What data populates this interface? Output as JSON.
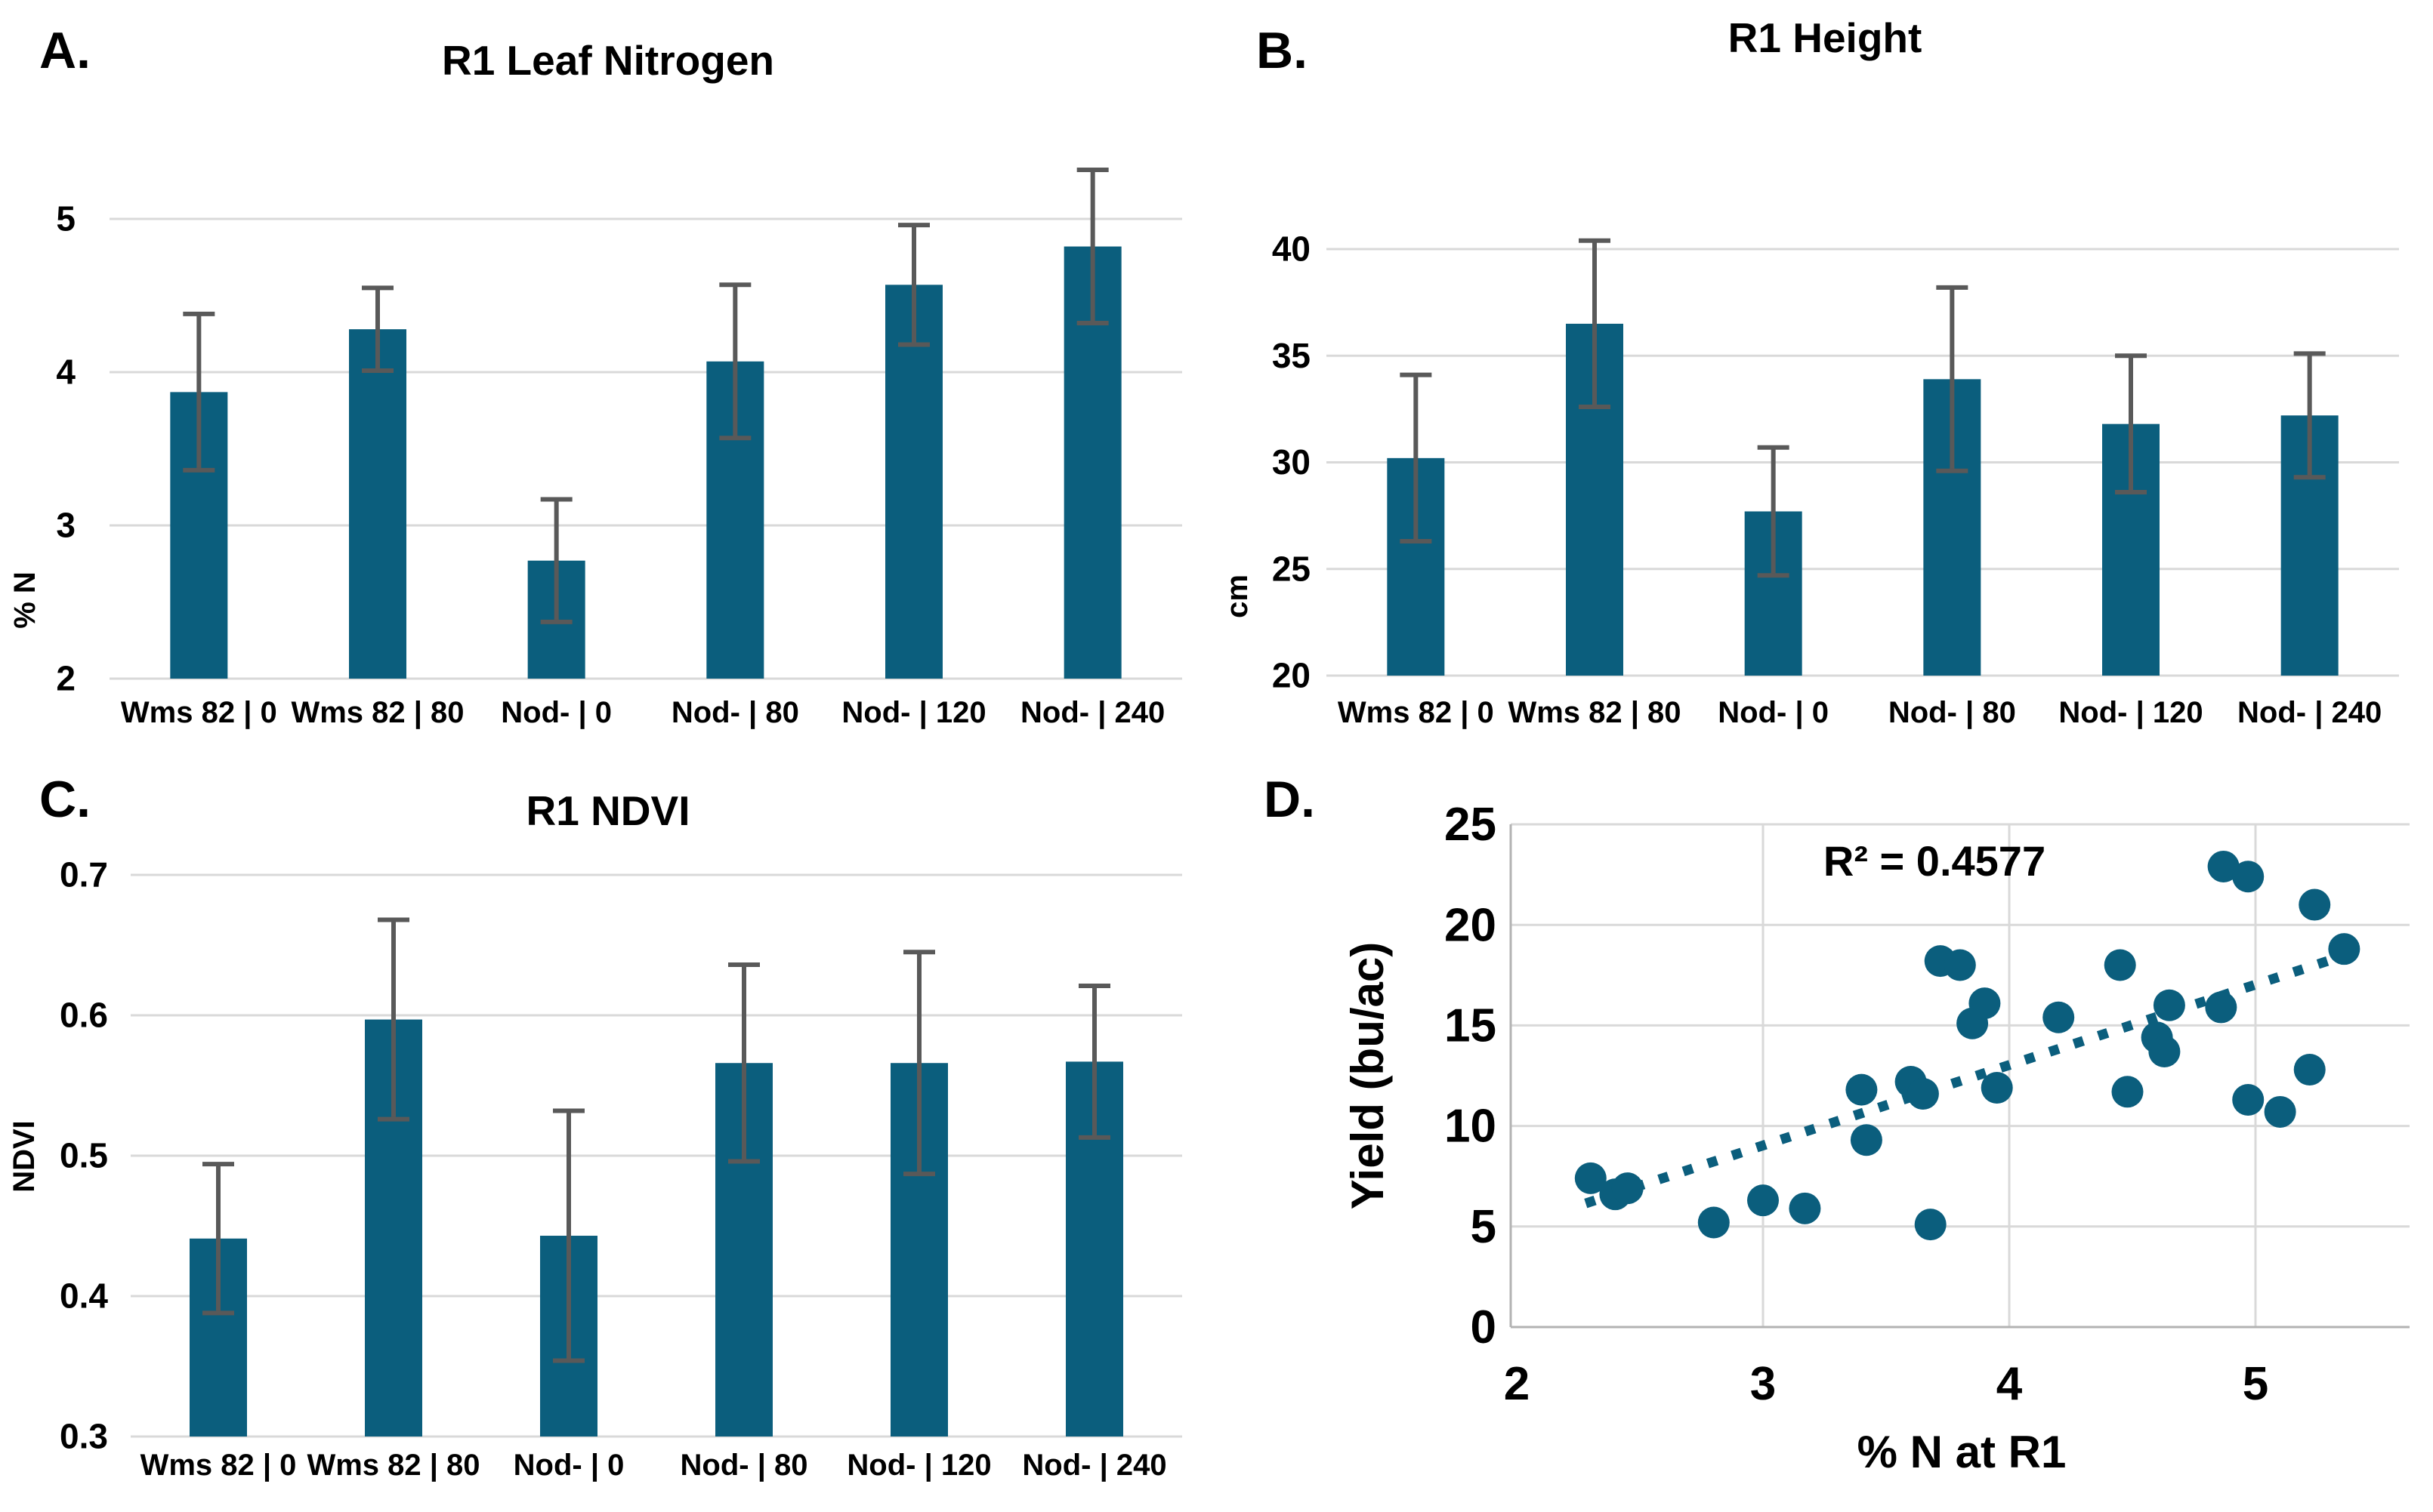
{
  "colors": {
    "bar_fill": "#0b5e7d",
    "marker_fill": "#0b5e7d",
    "trendline": "#0b5e7d",
    "error_bar": "#595959",
    "gridline": "#d9d9d9",
    "axis_line": "#b3b3b3",
    "text": "#000000",
    "background": "#ffffff"
  },
  "chart_data": [
    {
      "id": "panel-a",
      "panel_letter": "A.",
      "type": "bar",
      "title": "R1 Leaf Nitrogen",
      "xlabel": "",
      "ylabel": "% N",
      "categories": [
        "Wms 82 | 0",
        "Wms 82 | 80",
        "Nod- | 0",
        "Nod- | 80",
        "Nod- | 120",
        "Nod- | 240"
      ],
      "values": [
        3.87,
        4.28,
        2.77,
        4.07,
        4.57,
        4.82
      ],
      "errors": [
        0.51,
        0.27,
        0.4,
        0.5,
        0.39,
        0.5
      ],
      "ylim": [
        2,
        5.4
      ],
      "yticks": [
        {
          "v": 2,
          "label": "2"
        },
        {
          "v": 3,
          "label": "3"
        },
        {
          "v": 4,
          "label": "4"
        },
        {
          "v": 5,
          "label": "5"
        }
      ],
      "grid": true,
      "legend": "none"
    },
    {
      "id": "panel-b",
      "panel_letter": "B.",
      "type": "bar",
      "title": "R1 Height",
      "xlabel": "",
      "ylabel": "cm",
      "categories": [
        "Wms 82 | 0",
        "Wms 82 | 80",
        "Nod- | 0",
        "Nod- | 80",
        "Nod- | 120",
        "Nod- | 240"
      ],
      "values": [
        30.2,
        36.5,
        27.7,
        33.9,
        31.8,
        32.2
      ],
      "errors": [
        3.9,
        3.9,
        3.0,
        4.3,
        3.2,
        2.9
      ],
      "ylim": [
        20,
        41
      ],
      "yticks": [
        {
          "v": 20,
          "label": "20"
        },
        {
          "v": 25,
          "label": "25"
        },
        {
          "v": 30,
          "label": "30"
        },
        {
          "v": 35,
          "label": "35"
        },
        {
          "v": 40,
          "label": "40"
        }
      ],
      "grid": true,
      "legend": "none"
    },
    {
      "id": "panel-c",
      "panel_letter": "C.",
      "type": "bar",
      "title": "R1 NDVI",
      "xlabel": "",
      "ylabel": "NDVI",
      "categories": [
        "Wms 82 | 0",
        "Wms 82 | 80",
        "Nod- | 0",
        "Nod- | 80",
        "Nod- | 120",
        "Nod- | 240"
      ],
      "values": [
        0.441,
        0.597,
        0.443,
        0.566,
        0.566,
        0.567
      ],
      "errors": [
        0.053,
        0.071,
        0.089,
        0.07,
        0.079,
        0.054
      ],
      "ylim": [
        0.3,
        0.71
      ],
      "yticks": [
        {
          "v": 0.3,
          "label": "0.3"
        },
        {
          "v": 0.4,
          "label": "0.4"
        },
        {
          "v": 0.5,
          "label": "0.5"
        },
        {
          "v": 0.6,
          "label": "0.6"
        },
        {
          "v": 0.7,
          "label": "0.7"
        }
      ],
      "grid": true,
      "legend": "none"
    },
    {
      "id": "panel-d",
      "panel_letter": "D.",
      "type": "scatter",
      "title": "",
      "xlabel": "% N at R1",
      "ylabel": "Yield (bu/ac)",
      "annotation": "R² = 0.4577",
      "xlim": [
        2,
        5.63
      ],
      "ylim": [
        0,
        25
      ],
      "xticks": [
        {
          "v": 2,
          "label": "2"
        },
        {
          "v": 3,
          "label": "3"
        },
        {
          "v": 4,
          "label": "4"
        },
        {
          "v": 5,
          "label": "5"
        }
      ],
      "yticks": [
        {
          "v": 0,
          "label": "0"
        },
        {
          "v": 5,
          "label": "5"
        },
        {
          "v": 10,
          "label": "10"
        },
        {
          "v": 15,
          "label": "15"
        },
        {
          "v": 20,
          "label": "20"
        },
        {
          "v": 25,
          "label": "25"
        }
      ],
      "points": [
        [
          2.3,
          7.4
        ],
        [
          2.4,
          6.6
        ],
        [
          2.45,
          6.9
        ],
        [
          2.8,
          5.2
        ],
        [
          3.0,
          6.3
        ],
        [
          3.17,
          5.9
        ],
        [
          3.4,
          11.8
        ],
        [
          3.42,
          9.3
        ],
        [
          3.6,
          12.2
        ],
        [
          3.65,
          11.6
        ],
        [
          3.68,
          5.1
        ],
        [
          3.72,
          18.2
        ],
        [
          3.8,
          18.0
        ],
        [
          3.85,
          15.1
        ],
        [
          3.9,
          16.1
        ],
        [
          3.95,
          11.9
        ],
        [
          4.2,
          15.4
        ],
        [
          4.45,
          18.0
        ],
        [
          4.48,
          11.7
        ],
        [
          4.6,
          14.4
        ],
        [
          4.63,
          13.7
        ],
        [
          4.65,
          16.0
        ],
        [
          4.86,
          15.9
        ],
        [
          4.87,
          22.9
        ],
        [
          4.97,
          22.4
        ],
        [
          4.97,
          11.3
        ],
        [
          5.1,
          10.7
        ],
        [
          5.22,
          12.8
        ],
        [
          5.24,
          21.0
        ],
        [
          5.36,
          18.8
        ]
      ],
      "trendline": {
        "x1": 2.28,
        "y1": 6.15,
        "x2": 5.38,
        "y2": 18.55,
        "style": "dotted"
      },
      "grid": true,
      "legend": "none"
    }
  ]
}
